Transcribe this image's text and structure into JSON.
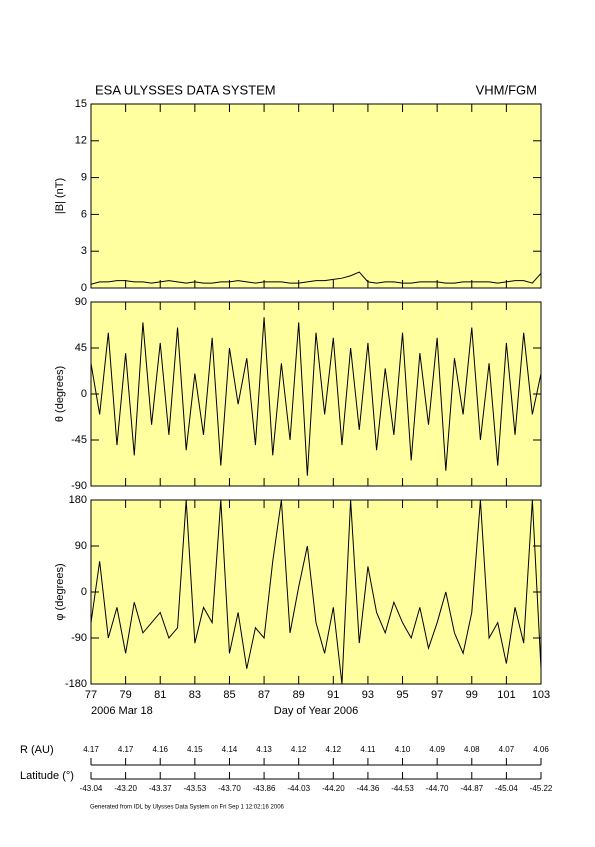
{
  "header": {
    "title": "ESA ULYSSES DATA SYSTEM",
    "instrument": "VHM/FGM"
  },
  "chart_data": [
    {
      "type": "line",
      "ylabel": "|B| (nT)",
      "xtick_labels": false,
      "x": [
        77,
        77.5,
        78,
        78.5,
        79,
        79.5,
        80,
        80.5,
        81,
        81.5,
        82,
        82.5,
        83,
        83.5,
        84,
        84.5,
        85,
        85.5,
        86,
        86.5,
        87,
        87.5,
        88,
        88.5,
        89,
        89.5,
        90,
        90.5,
        91,
        91.5,
        92,
        92.5,
        93,
        93.5,
        94,
        94.5,
        95,
        95.5,
        96,
        96.5,
        97,
        97.5,
        98,
        98.5,
        99,
        99.5,
        100,
        100.5,
        101,
        101.5,
        102,
        102.5,
        103
      ],
      "series": [
        {
          "color": "#000000",
          "values": [
            0.3,
            0.5,
            0.5,
            0.6,
            0.6,
            0.5,
            0.5,
            0.4,
            0.5,
            0.6,
            0.5,
            0.4,
            0.5,
            0.4,
            0.4,
            0.5,
            0.5,
            0.6,
            0.5,
            0.4,
            0.5,
            0.5,
            0.5,
            0.4,
            0.4,
            0.5,
            0.6,
            0.6,
            0.7,
            0.8,
            1.0,
            1.3,
            0.5,
            0.4,
            0.5,
            0.5,
            0.4,
            0.4,
            0.5,
            0.5,
            0.5,
            0.4,
            0.4,
            0.5,
            0.5,
            0.5,
            0.5,
            0.4,
            0.5,
            0.6,
            0.6,
            0.4,
            1.2
          ]
        }
      ],
      "xlim": [
        77,
        103
      ],
      "xticks": [
        77,
        79,
        81,
        83,
        85,
        87,
        89,
        91,
        93,
        95,
        97,
        99,
        101,
        103
      ],
      "ylim": [
        0,
        15
      ],
      "yticks": [
        0,
        3,
        6,
        9,
        12,
        15
      ],
      "background": "#ffffa0"
    },
    {
      "type": "line",
      "ylabel": "θ (degrees)",
      "xtick_labels": false,
      "x": [
        77,
        77.5,
        78,
        78.5,
        79,
        79.5,
        80,
        80.5,
        81,
        81.5,
        82,
        82.5,
        83,
        83.5,
        84,
        84.5,
        85,
        85.5,
        86,
        86.5,
        87,
        87.5,
        88,
        88.5,
        89,
        89.5,
        90,
        90.5,
        91,
        91.5,
        92,
        92.5,
        93,
        93.5,
        94,
        94.5,
        95,
        95.5,
        96,
        96.5,
        97,
        97.5,
        98,
        98.5,
        99,
        99.5,
        100,
        100.5,
        101,
        101.5,
        102,
        102.5,
        103
      ],
      "series": [
        {
          "color": "#000000",
          "values": [
            30,
            -20,
            60,
            -50,
            40,
            -60,
            70,
            -30,
            50,
            -40,
            65,
            -55,
            20,
            -40,
            55,
            -70,
            45,
            -10,
            35,
            -50,
            75,
            -60,
            30,
            -45,
            70,
            -80,
            60,
            -20,
            55,
            -50,
            45,
            -35,
            50,
            -55,
            25,
            -40,
            60,
            -65,
            40,
            -30,
            55,
            -75,
            35,
            -20,
            65,
            -45,
            30,
            -70,
            50,
            -40,
            60,
            -20,
            20
          ]
        }
      ],
      "xlim": [
        77,
        103
      ],
      "xticks": [
        77,
        79,
        81,
        83,
        85,
        87,
        89,
        91,
        93,
        95,
        97,
        99,
        101,
        103
      ],
      "ylim": [
        -90,
        90
      ],
      "yticks": [
        -90,
        -45,
        0,
        45,
        90
      ],
      "background": "#ffffa0"
    },
    {
      "type": "line",
      "ylabel": "φ (degrees)",
      "xtick_labels": true,
      "xlabel": "Day of Year 2006",
      "annotation": "2006 Mar 18",
      "x": [
        77,
        77.5,
        78,
        78.5,
        79,
        79.5,
        80,
        80.5,
        81,
        81.5,
        82,
        82.5,
        83,
        83.5,
        84,
        84.5,
        85,
        85.5,
        86,
        86.5,
        87,
        87.5,
        88,
        88.5,
        89,
        89.5,
        90,
        90.5,
        91,
        91.5,
        92,
        92.5,
        93,
        93.5,
        94,
        94.5,
        95,
        95.5,
        96,
        96.5,
        97,
        97.5,
        98,
        98.5,
        99,
        99.5,
        100,
        100.5,
        101,
        101.5,
        102,
        102.5,
        103
      ],
      "series": [
        {
          "color": "#000000",
          "values": [
            -60,
            60,
            -90,
            -30,
            -120,
            -20,
            -80,
            -60,
            -40,
            -90,
            -70,
            180,
            -100,
            -30,
            -60,
            180,
            -120,
            -40,
            -150,
            -70,
            -90,
            60,
            180,
            -80,
            10,
            90,
            -60,
            -120,
            -30,
            -180,
            180,
            -100,
            50,
            -40,
            -80,
            -20,
            -60,
            -90,
            -30,
            -110,
            -60,
            0,
            -80,
            -120,
            -40,
            180,
            -90,
            -60,
            -140,
            -30,
            -100,
            180,
            -150
          ]
        }
      ],
      "xlim": [
        77,
        103
      ],
      "xticks": [
        77,
        79,
        81,
        83,
        85,
        87,
        89,
        91,
        93,
        95,
        97,
        99,
        101,
        103
      ],
      "ylim": [
        -180,
        180
      ],
      "yticks": [
        -180,
        -90,
        0,
        90,
        180
      ],
      "background": "#ffffa0"
    }
  ],
  "orbit": {
    "r_label": "R (AU)",
    "r_values": [
      "4.17",
      "4.17",
      "4.16",
      "4.15",
      "4.14",
      "4.13",
      "4.12",
      "4.12",
      "4.11",
      "4.10",
      "4.09",
      "4.08",
      "4.07",
      "4.06"
    ],
    "lat_label": "Latitude (°)",
    "lat_values": [
      "-43.04",
      "-43.20",
      "-43.37",
      "-43.53",
      "-43.70",
      "-43.86",
      "-44.03",
      "-44.20",
      "-44.36",
      "-44.53",
      "-44.70",
      "-44.87",
      "-45.04",
      "-45.22"
    ]
  },
  "footer": "Generated from IDL by Ulysses Data System on Fri Sep  1 12:02:16 2006"
}
